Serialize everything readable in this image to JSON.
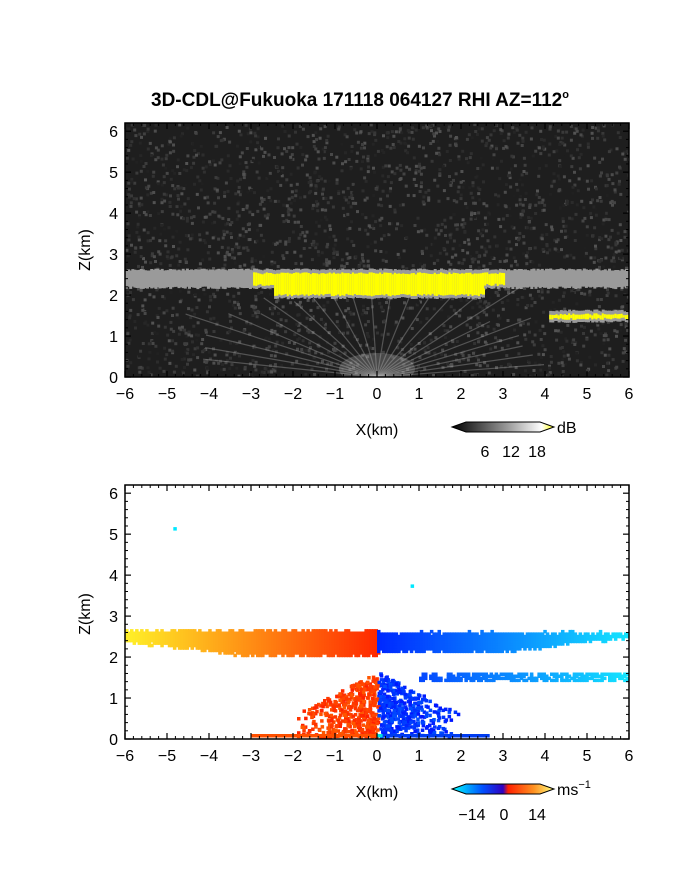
{
  "title": "3D-CDL@Fukuoka 171118 064127 RHI AZ=112",
  "title_degree_mark": "o",
  "chart_data": [
    {
      "type": "heatmap",
      "quantity": "reflectivity",
      "xlabel": "X(km)",
      "ylabel": "Z(km)",
      "xlim": [
        -6,
        6
      ],
      "ylim": [
        0,
        6.2
      ],
      "xticks": [
        "−6",
        "−5",
        "−4",
        "−3",
        "−2",
        "−1",
        "0",
        "1",
        "2",
        "3",
        "4",
        "5",
        "6"
      ],
      "yticks": [
        "0",
        "1",
        "2",
        "3",
        "4",
        "5",
        "6"
      ],
      "background": "#1e1e1e",
      "features": [
        {
          "kind": "cloud_layer",
          "x_range": [
            -6,
            6
          ],
          "z_base": 2.0,
          "z_top": 2.55,
          "color": "#ffff00"
        },
        {
          "kind": "cloud_fragment",
          "x_range": [
            4.1,
            6.0
          ],
          "z_base": 1.42,
          "z_top": 1.55,
          "color": "#ffff00"
        },
        {
          "kind": "near_range_rays",
          "origin_x": 0,
          "origin_z": 0
        }
      ],
      "colorbar": {
        "unit": "dB",
        "ticks": [
          "6",
          "12",
          "18"
        ],
        "colors": [
          "#000000",
          "#ffffff",
          "#ffff00"
        ]
      }
    },
    {
      "type": "heatmap",
      "quantity": "doppler_velocity",
      "xlabel": "X(km)",
      "ylabel": "Z(km)",
      "xlim": [
        -6,
        6
      ],
      "ylim": [
        0,
        6.2
      ],
      "xticks": [
        "−6",
        "−5",
        "−4",
        "−3",
        "−2",
        "−1",
        "0",
        "1",
        "2",
        "3",
        "4",
        "5",
        "6"
      ],
      "yticks": [
        "0",
        "1",
        "2",
        "3",
        "4",
        "5",
        "6"
      ],
      "features": [
        {
          "kind": "cloud_layer_positive",
          "x_range": [
            -6,
            0
          ],
          "z_base": 1.95,
          "z_top": 2.65
        },
        {
          "kind": "cloud_layer_negative",
          "x_range": [
            0,
            6
          ],
          "z_base": 2.05,
          "z_top": 2.6
        },
        {
          "kind": "cloud_fragment",
          "x_range": [
            1.0,
            6.0
          ],
          "z_base": 1.4,
          "z_top": 1.55
        },
        {
          "kind": "near_range_echo",
          "x_range": [
            -1.8,
            2.6
          ],
          "z_base": 0,
          "z_top": 1.6
        },
        {
          "kind": "isolated_pixel",
          "x": -4.85,
          "z": 5.1
        },
        {
          "kind": "isolated_pixel",
          "x": 0.8,
          "z": 3.7
        }
      ],
      "colorbar": {
        "unit": "ms",
        "unit_exponent": "−1",
        "ticks": [
          "−14",
          "0",
          "14"
        ],
        "colors": [
          "#00ffff",
          "#0040ff",
          "#ff2000",
          "#ffff80"
        ]
      }
    }
  ]
}
